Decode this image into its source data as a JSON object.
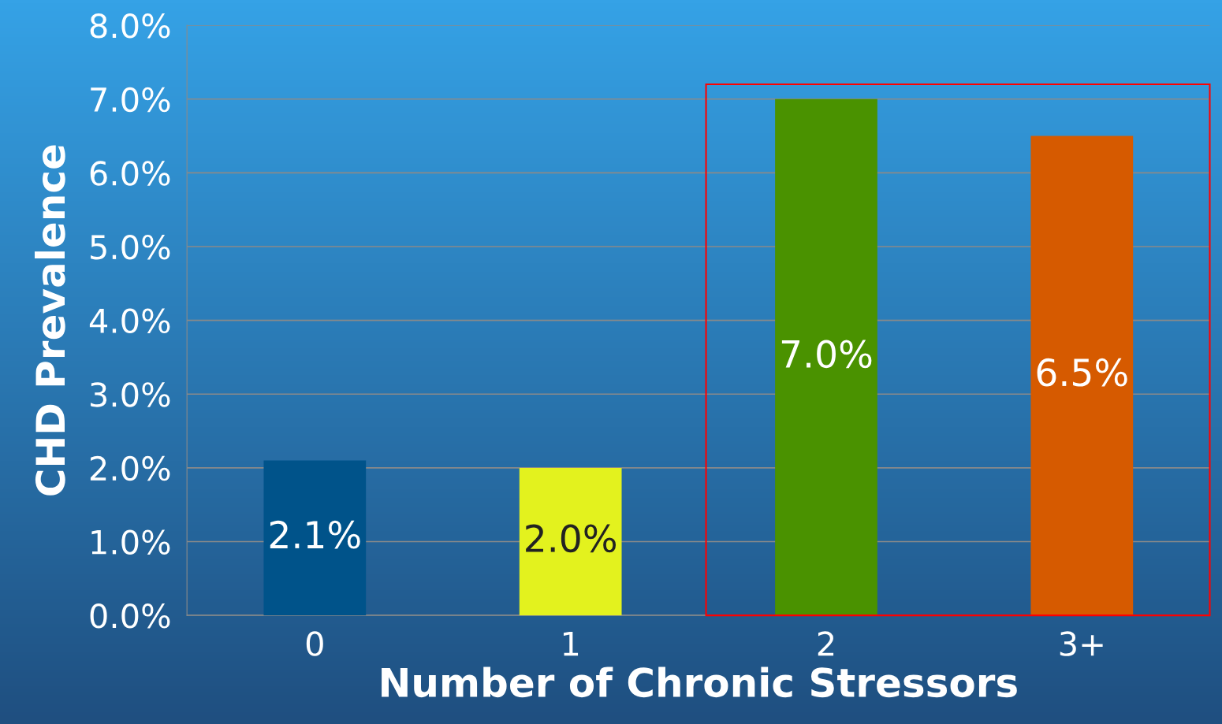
{
  "chart_data": {
    "type": "bar",
    "xlabel": "Number of Chronic Stressors",
    "ylabel": "CHD Prevalence",
    "categories": [
      "0",
      "1",
      "2",
      "3+"
    ],
    "values": [
      2.1,
      2.0,
      7.0,
      6.5
    ],
    "colors": [
      "#00538a",
      "#e3f21e",
      "#4a9200",
      "#d65a00"
    ],
    "value_labels": [
      "2.1%",
      "2.0%",
      "7.0%",
      "6.5%"
    ],
    "ylim": [
      0,
      8
    ],
    "yticks": [
      {
        "value": 0,
        "label": "0.0%"
      },
      {
        "value": 1,
        "label": "1.0%"
      },
      {
        "value": 2,
        "label": "2.0%"
      },
      {
        "value": 3,
        "label": "3.0%"
      },
      {
        "value": 4,
        "label": "4.0%"
      },
      {
        "value": 5,
        "label": "5.0%"
      },
      {
        "value": 6,
        "label": "6.0%"
      },
      {
        "value": 7,
        "label": "7.0%"
      },
      {
        "value": 8,
        "label": "8.0%"
      }
    ],
    "grid": "y"
  }
}
